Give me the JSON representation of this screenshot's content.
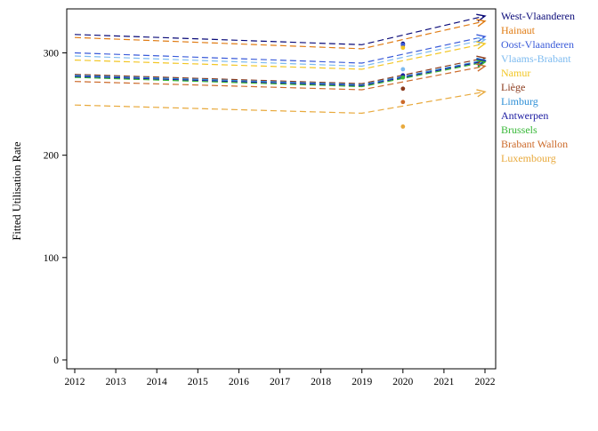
{
  "chart_data": {
    "type": "line",
    "title": "",
    "xlabel": "",
    "ylabel": "Fitted Utilisation Rate",
    "x_ticks": [
      "2012",
      "2013",
      "2014",
      "2015",
      "2016",
      "2017",
      "2018",
      "2019",
      "2020",
      "2021",
      "2022"
    ],
    "y_ticks": [
      "0",
      "100",
      "200",
      "300"
    ],
    "xlim": [
      2011.7,
      2022.3
    ],
    "ylim": [
      -8,
      344
    ],
    "grid": false,
    "legend": "right",
    "series": [
      {
        "name": "West-Vlaanderen",
        "color": "#0a0a78",
        "trend": [
          [
            2012,
            318
          ],
          [
            2019,
            308
          ],
          [
            2022,
            336
          ]
        ],
        "obs_2020": 309
      },
      {
        "name": "Hainaut",
        "color": "#e07c14",
        "trend": [
          [
            2012,
            315
          ],
          [
            2019,
            304
          ],
          [
            2022,
            331
          ]
        ],
        "obs_2020": 307
      },
      {
        "name": "Oost-Vlaanderen",
        "color": "#3a5bd9",
        "trend": [
          [
            2012,
            300
          ],
          [
            2019,
            290
          ],
          [
            2022,
            316
          ]
        ],
        "obs_2020": 308
      },
      {
        "name": "Vlaams-Brabant",
        "color": "#7dbbf0",
        "trend": [
          [
            2012,
            297
          ],
          [
            2019,
            287
          ],
          [
            2022,
            313
          ]
        ],
        "obs_2020": 284
      },
      {
        "name": "Namur",
        "color": "#f2c624",
        "trend": [
          [
            2012,
            293
          ],
          [
            2019,
            284
          ],
          [
            2022,
            309
          ]
        ],
        "obs_2020": 305
      },
      {
        "name": "Liège",
        "color": "#8b3a1c",
        "trend": [
          [
            2012,
            279
          ],
          [
            2019,
            270
          ],
          [
            2022,
            295
          ]
        ],
        "obs_2020": 265
      },
      {
        "name": "Limburg",
        "color": "#2e8fd6",
        "trend": [
          [
            2012,
            278
          ],
          [
            2019,
            269
          ],
          [
            2022,
            293
          ]
        ],
        "obs_2020": 277
      },
      {
        "name": "Antwerpen",
        "color": "#1a1aa0",
        "trend": [
          [
            2012,
            277
          ],
          [
            2019,
            268
          ],
          [
            2022,
            292
          ]
        ],
        "obs_2020": 278
      },
      {
        "name": "Brussels",
        "color": "#38b838",
        "trend": [
          [
            2012,
            276
          ],
          [
            2019,
            267
          ],
          [
            2022,
            291
          ]
        ],
        "obs_2020": 276
      },
      {
        "name": "Brabant Wallon",
        "color": "#cc6a2a",
        "trend": [
          [
            2012,
            272
          ],
          [
            2019,
            264
          ],
          [
            2022,
            287
          ]
        ],
        "obs_2020": 252
      },
      {
        "name": "Luxembourg",
        "color": "#e8a93c",
        "trend": [
          [
            2012,
            249
          ],
          [
            2019,
            241
          ],
          [
            2022,
            262
          ]
        ],
        "obs_2020": 228
      }
    ]
  }
}
